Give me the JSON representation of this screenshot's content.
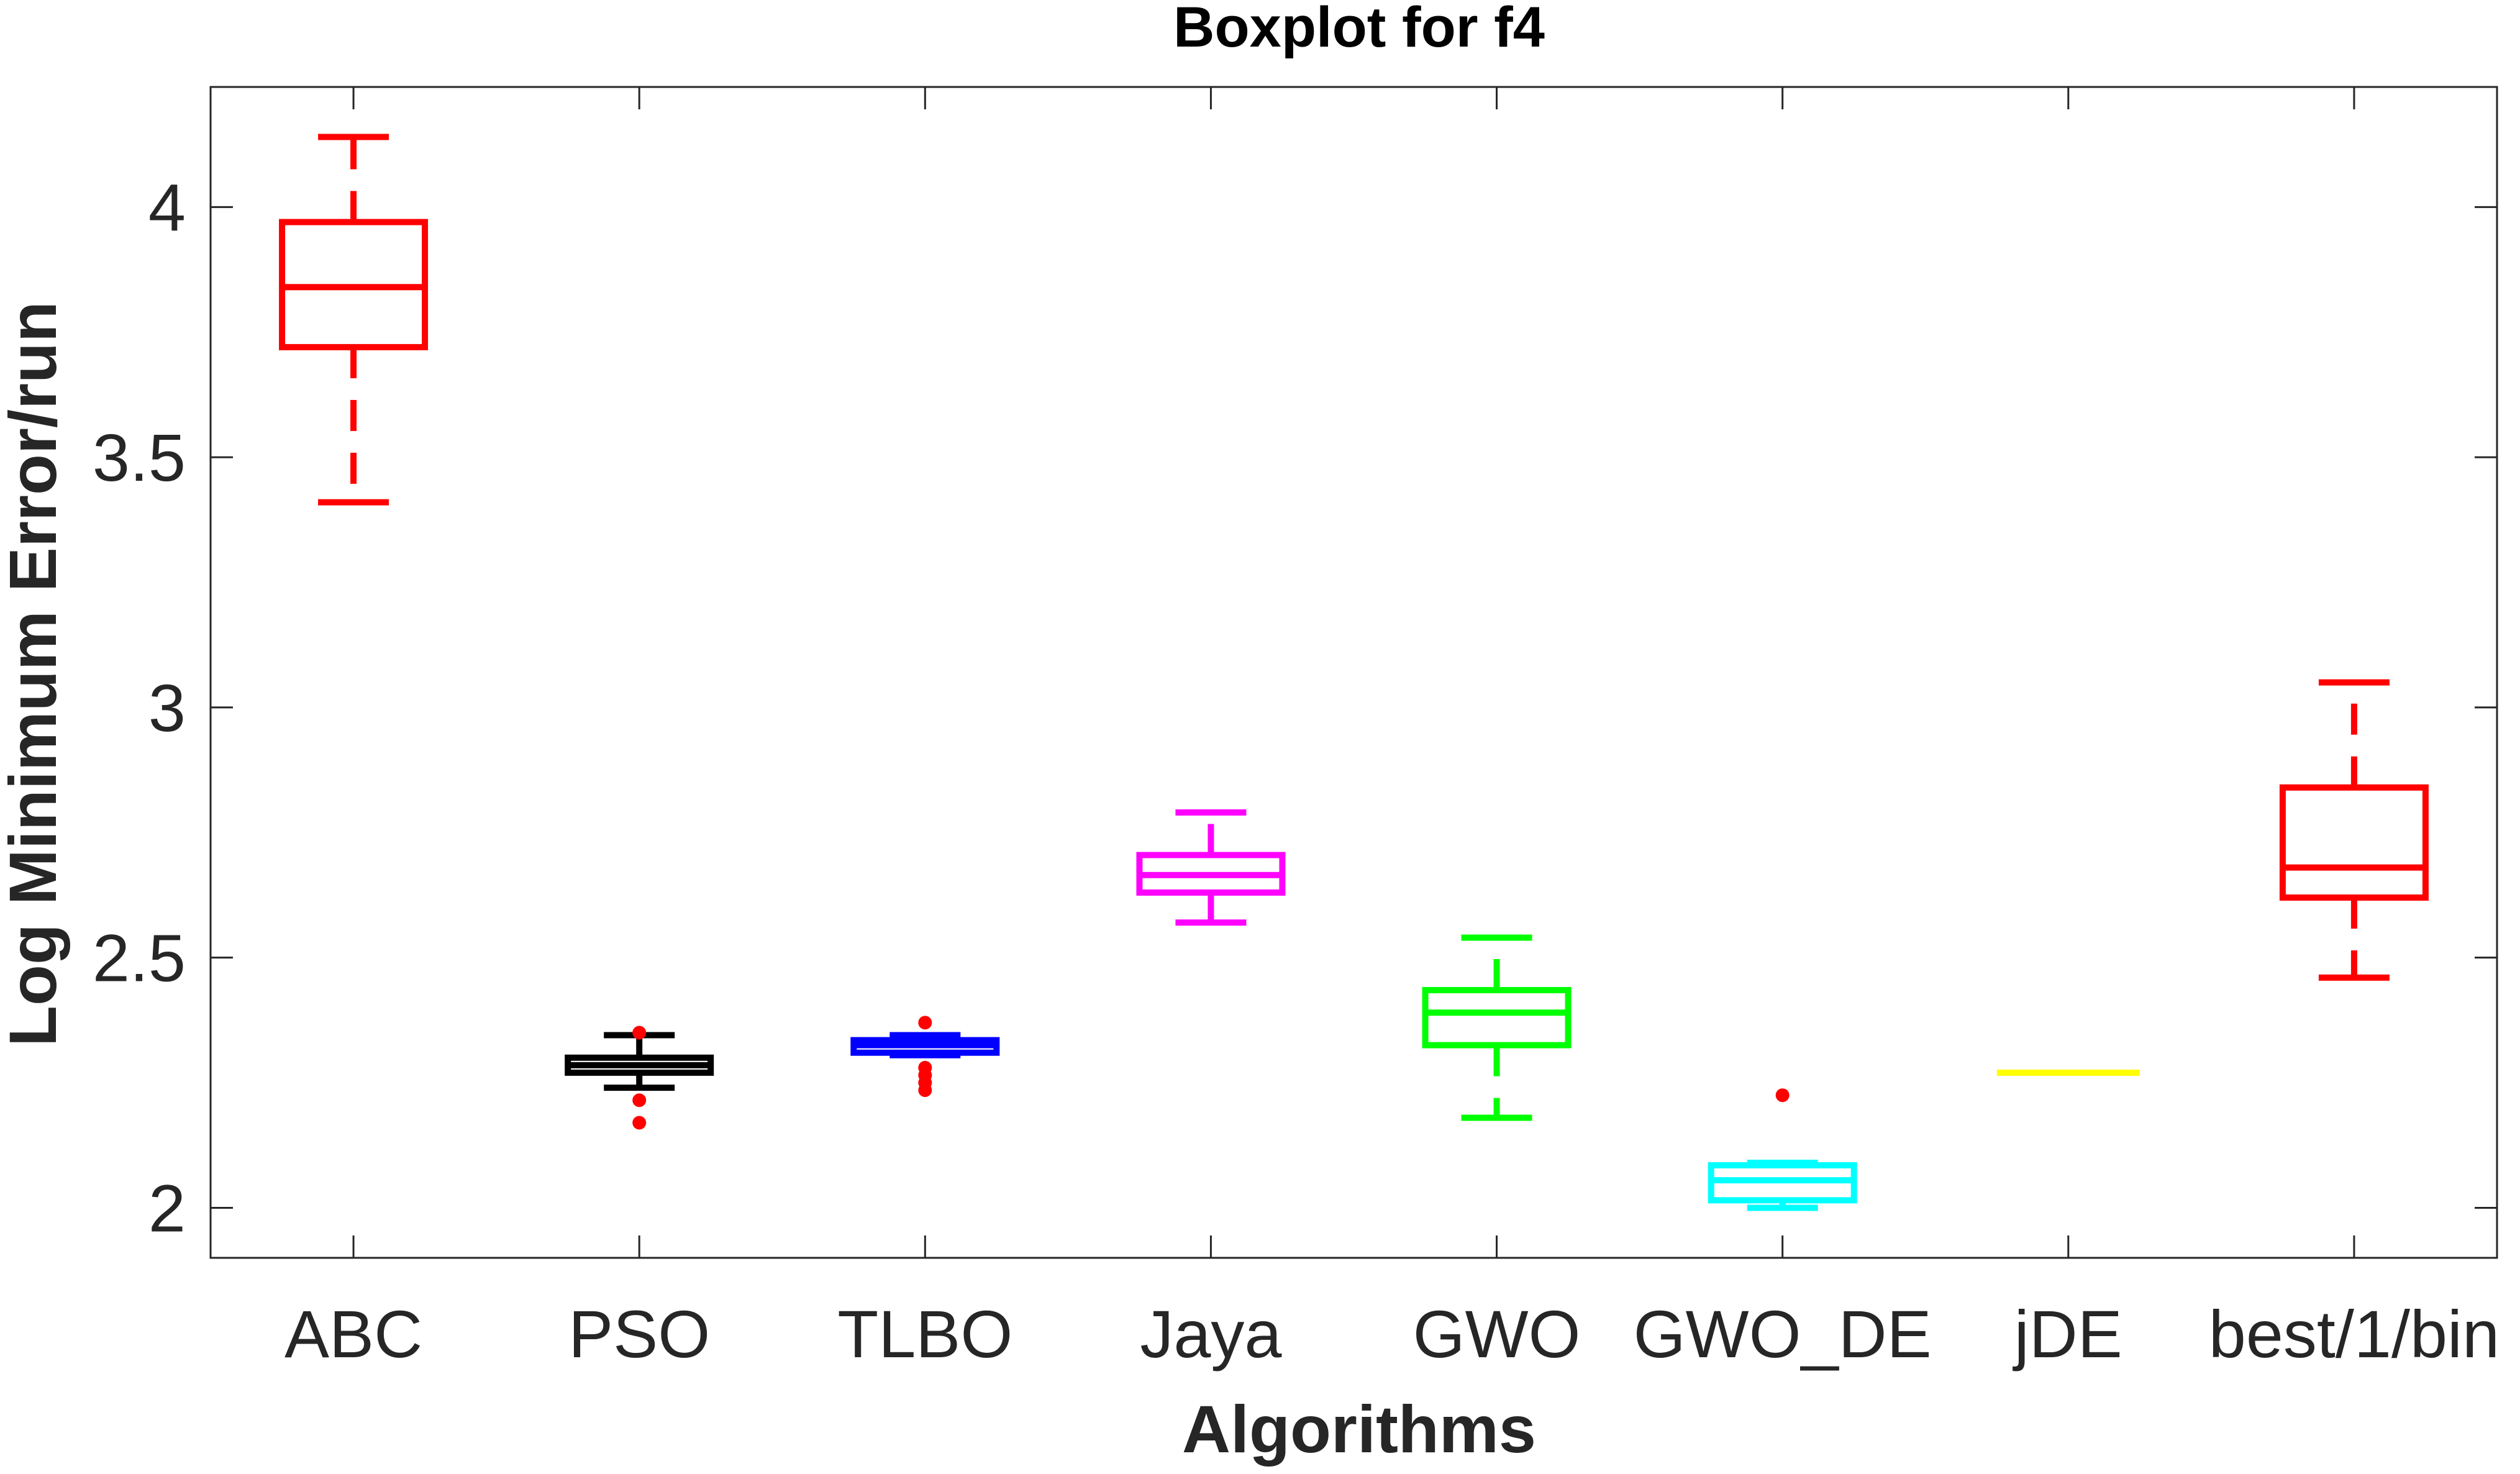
{
  "chart_data": {
    "type": "boxplot",
    "title": "Boxplot for f4",
    "xlabel": "Algorithms",
    "ylabel": "Log Minimum Error/run",
    "ylim": [
      1.9,
      4.24
    ],
    "yticks": [
      2,
      2.5,
      3,
      3.5,
      4
    ],
    "ytick_labels": [
      "2",
      "2.5",
      "3",
      "3.5",
      "4"
    ],
    "categories": [
      "ABC",
      "PSO",
      "TLBO",
      "Jaya",
      "GWO",
      "GWO_DE",
      "jDE",
      "best/1/bin"
    ],
    "series": [
      {
        "name": "ABC",
        "color": "#ff0000",
        "whisker_low": 3.41,
        "q1": 3.72,
        "median": 3.84,
        "q3": 3.97,
        "whisker_high": 4.14,
        "outliers": []
      },
      {
        "name": "PSO",
        "color": "#000000",
        "whisker_low": 2.24,
        "q1": 2.27,
        "median": 2.285,
        "q3": 2.3,
        "whisker_high": 2.345,
        "outliers": [
          2.17,
          2.215,
          2.35
        ]
      },
      {
        "name": "TLBO",
        "color": "#0000ff",
        "whisker_low": 2.305,
        "q1": 2.31,
        "median": 2.325,
        "q3": 2.335,
        "whisker_high": 2.345,
        "outliers": [
          2.235,
          2.25,
          2.265,
          2.28,
          2.37
        ]
      },
      {
        "name": "Jaya",
        "color": "#ff00ff",
        "whisker_low": 2.57,
        "q1": 2.63,
        "median": 2.665,
        "q3": 2.705,
        "whisker_high": 2.79,
        "outliers": []
      },
      {
        "name": "GWO",
        "color": "#00ff00",
        "whisker_low": 2.18,
        "q1": 2.325,
        "median": 2.39,
        "q3": 2.435,
        "whisker_high": 2.54,
        "outliers": []
      },
      {
        "name": "GWO_DE",
        "color": "#00ffff",
        "whisker_low": 2.0,
        "q1": 2.015,
        "median": 2.055,
        "q3": 2.085,
        "whisker_high": 2.09,
        "outliers": [
          2.225
        ]
      },
      {
        "name": "jDE",
        "color": "#ffff00",
        "whisker_low": 2.27,
        "q1": 2.27,
        "median": 2.27,
        "q3": 2.27,
        "whisker_high": 2.27,
        "outliers": []
      },
      {
        "name": "best/1/bin",
        "color": "#ff0000",
        "whisker_low": 2.46,
        "q1": 2.62,
        "median": 2.68,
        "q3": 2.84,
        "whisker_high": 3.05,
        "outliers": []
      }
    ]
  }
}
